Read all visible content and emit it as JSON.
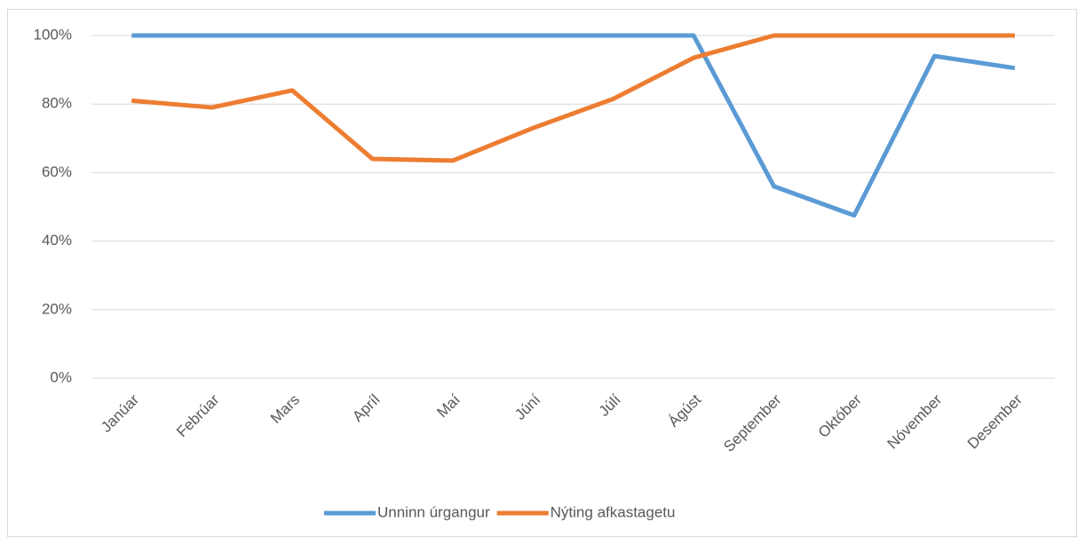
{
  "chart_data": {
    "type": "line",
    "categories": [
      "Janúar",
      "Febrúar",
      "Mars",
      "Apríl",
      "Maí",
      "Júní",
      "Júlí",
      "Ágúst",
      "September",
      "Október",
      "Nóvember",
      "Desember"
    ],
    "series": [
      {
        "name": "Unninn úrgangur",
        "color": "#5b9bd5",
        "values": [
          100,
          100,
          100,
          100,
          100,
          100,
          100,
          100,
          56,
          47.5,
          94,
          90.5
        ]
      },
      {
        "name": "Nýting afkastagetu",
        "color": "#ed7d31",
        "values": [
          81,
          79,
          84,
          64,
          63.5,
          73,
          81.5,
          93.5,
          100,
          100,
          100,
          100
        ]
      }
    ],
    "ylim": [
      0,
      100
    ],
    "yticks": [
      {
        "value": 0,
        "label": "0%"
      },
      {
        "value": 20,
        "label": "20%"
      },
      {
        "value": 40,
        "label": "40%"
      },
      {
        "value": 60,
        "label": "60%"
      },
      {
        "value": 80,
        "label": "80%"
      },
      {
        "value": 100,
        "label": "100%"
      }
    ],
    "grid": true,
    "legend": "bottom"
  }
}
